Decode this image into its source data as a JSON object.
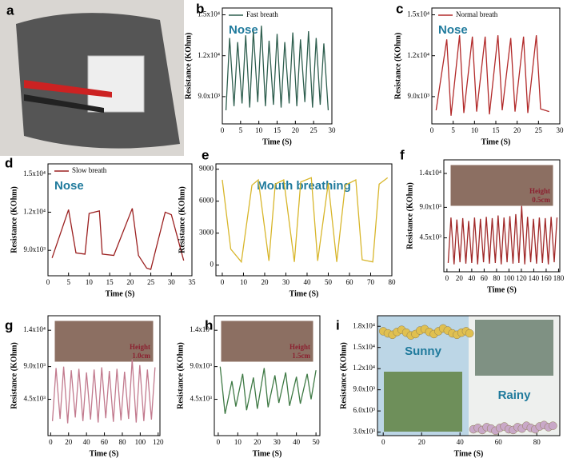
{
  "photo_panel": {
    "label": "a"
  },
  "chart_data": [
    {
      "type": "line",
      "label": "b",
      "xlabel": "Time (S)",
      "ylabel": "Resistance (KOhm)",
      "annotations": [
        "Nose"
      ],
      "xlim": [
        0,
        30
      ],
      "xticks": [
        0,
        5,
        10,
        15,
        20,
        25,
        30
      ],
      "ylim": [
        7000,
        15500
      ],
      "yticks": [
        {
          "value": 9000,
          "label": "9.0x10³"
        },
        {
          "value": 12000,
          "label": "1.2x10⁴"
        },
        {
          "value": 15000,
          "label": "1.5x10⁴"
        }
      ],
      "x": [
        1,
        2,
        3.2,
        4.2,
        5.4,
        6.4,
        7.5,
        8.5,
        9.7,
        10.7,
        11.8,
        12.8,
        14,
        15,
        16.1,
        17.1,
        18.3,
        19.3,
        20.4,
        21.4,
        22.6,
        23.6,
        24.7,
        25.7,
        26.8,
        27.8,
        29
      ],
      "series": [
        {
          "name": "Fast breath",
          "color": "#2f5f4f",
          "values": [
            8000,
            13300,
            8300,
            13000,
            8500,
            13500,
            8200,
            13800,
            8600,
            14200,
            8300,
            13100,
            8400,
            13600,
            8200,
            13000,
            8500,
            13700,
            8300,
            13200,
            8600,
            13800,
            8200,
            13300,
            8400,
            12900,
            8000
          ]
        }
      ]
    },
    {
      "type": "line",
      "label": "c",
      "xlabel": "Time (S)",
      "ylabel": "Resistance (KOhm)",
      "annotations": [
        "Nose"
      ],
      "xlim": [
        0,
        30
      ],
      "xticks": [
        0,
        5,
        10,
        15,
        20,
        25,
        30
      ],
      "ylim": [
        7000,
        15500
      ],
      "yticks": [
        {
          "value": 9000,
          "label": "9.0x10³"
        },
        {
          "value": 12000,
          "label": "1.2x10⁴"
        },
        {
          "value": 15000,
          "label": "1.5x10⁴"
        }
      ],
      "x": [
        1,
        3.5,
        4.5,
        6.5,
        7.5,
        9.5,
        10.5,
        12.5,
        13.5,
        15.5,
        16.5,
        18.5,
        19.5,
        21.5,
        22.5,
        24.5,
        25.5,
        27.5
      ],
      "series": [
        {
          "name": "Normal breath",
          "color": "#b22a2a",
          "values": [
            8000,
            13200,
            7600,
            13500,
            7800,
            13400,
            7900,
            13400,
            7700,
            13500,
            8000,
            13300,
            7900,
            13400,
            7800,
            13500,
            8100,
            7900
          ]
        }
      ]
    },
    {
      "type": "line",
      "label": "d",
      "xlabel": "Time (S)",
      "ylabel": "Resistance (KOhm)",
      "annotations": [
        "Nose"
      ],
      "xlim": [
        0,
        35
      ],
      "xticks": [
        0,
        5,
        10,
        15,
        20,
        25,
        30,
        35
      ],
      "ylim": [
        7000,
        15800
      ],
      "yticks": [
        {
          "value": 9000,
          "label": "9.0x10³"
        },
        {
          "value": 12000,
          "label": "1.2x10⁴"
        },
        {
          "value": 15000,
          "label": "1.5x10⁴"
        }
      ],
      "x": [
        1,
        5,
        6.8,
        9,
        10,
        12.5,
        13.2,
        16,
        20.5,
        22,
        24,
        25,
        28.5,
        30,
        33
      ],
      "series": [
        {
          "name": "Slow breath",
          "color": "#9b2020",
          "values": [
            8400,
            12200,
            8800,
            8700,
            11900,
            12100,
            8700,
            8600,
            12300,
            8600,
            7600,
            7500,
            12000,
            11800,
            8200
          ]
        }
      ]
    },
    {
      "type": "line",
      "label": "e",
      "xlabel": "Time (S)",
      "ylabel": "Resistance (KOhm)",
      "annotations": [
        "Mouth breathing"
      ],
      "xlim": [
        -3,
        80
      ],
      "xticks": [
        0,
        10,
        20,
        30,
        40,
        50,
        60,
        70,
        80
      ],
      "ylim": [
        -1000,
        9500
      ],
      "yticks": [
        0,
        3000,
        6000,
        9000
      ],
      "x": [
        0,
        4,
        9,
        14,
        17,
        22,
        25,
        29,
        34,
        37,
        42,
        45,
        50,
        54,
        58,
        63,
        66,
        71,
        74,
        78
      ],
      "series": [
        {
          "name": null,
          "color": "#d8b62b",
          "values": [
            8000,
            1500,
            300,
            7500,
            8000,
            400,
            7600,
            8000,
            300,
            7800,
            8200,
            400,
            7700,
            300,
            7500,
            8000,
            500,
            300,
            7600,
            8200
          ]
        }
      ]
    },
    {
      "type": "line",
      "label": "f",
      "xlabel": "Time (S)",
      "ylabel": "Resistance (KOhm)",
      "annotations": [
        "Height",
        "0.5cm"
      ],
      "xlim": [
        -5,
        182
      ],
      "xticks": [
        0,
        20,
        40,
        60,
        80,
        100,
        120,
        140,
        160,
        180
      ],
      "ylim": [
        -500,
        16000
      ],
      "yticks": [
        {
          "value": 4500,
          "label": "4.5x10³"
        },
        {
          "value": 9000,
          "label": "9.0x10³"
        },
        {
          "value": 14000,
          "label": "1.4x10⁴"
        }
      ],
      "x": [
        2,
        6.5,
        11.5,
        16,
        21,
        25.5,
        30.5,
        35,
        40,
        44.5,
        49.5,
        54,
        59,
        63.5,
        68.5,
        73,
        78,
        82.5,
        87.5,
        92,
        97,
        101.5,
        106.5,
        111,
        116,
        120.5,
        125.5,
        130,
        135,
        139.5,
        144.5,
        149,
        154,
        158.5,
        163.5,
        168,
        173,
        177.5
      ],
      "series": [
        {
          "name": null,
          "color": "#a02828",
          "values": [
            800,
            7500,
            600,
            7200,
            900,
            7400,
            700,
            7000,
            800,
            7500,
            600,
            7300,
            900,
            7600,
            700,
            7400,
            800,
            7800,
            600,
            7500,
            900,
            7700,
            700,
            8000,
            800,
            9200,
            600,
            7600,
            900,
            7300,
            700,
            7500,
            800,
            7400,
            600,
            7600,
            900,
            7500
          ]
        }
      ]
    },
    {
      "type": "line",
      "label": "g",
      "xlabel": "Time (S)",
      "ylabel": "Resistance (KOhm)",
      "annotations": [
        "Height",
        "1.0cm"
      ],
      "xlim": [
        -3,
        122
      ],
      "xticks": [
        0,
        20,
        40,
        60,
        80,
        100,
        120
      ],
      "ylim": [
        -500,
        16000
      ],
      "yticks": [
        {
          "value": 4500,
          "label": "4.5x10³"
        },
        {
          "value": 9000,
          "label": "9.0x10³"
        },
        {
          "value": 14000,
          "label": "1.4x10⁴"
        }
      ],
      "x": [
        2,
        6,
        10.5,
        14.5,
        19,
        23,
        27.5,
        31.5,
        36,
        40,
        44.5,
        48.5,
        53,
        57,
        61.5,
        65.5,
        70,
        74,
        78.5,
        82.5,
        87,
        91,
        95.5,
        99.5,
        104,
        108,
        112.5,
        116.5
      ],
      "series": [
        {
          "name": null,
          "color": "#c27a8e",
          "values": [
            1500,
            8800,
            1800,
            9000,
            1200,
            8500,
            2000,
            8700,
            1500,
            8200,
            1700,
            8600,
            1300,
            8900,
            1900,
            8400,
            1400,
            8700,
            1600,
            8300,
            1800,
            10000,
            1300,
            9200,
            1500,
            8600,
            1700,
            8900
          ]
        }
      ]
    },
    {
      "type": "line",
      "label": "h",
      "xlabel": "Time (S)",
      "ylabel": "Resistance (KOhm)",
      "annotations": [
        "Height",
        "1.5cm"
      ],
      "xlim": [
        -2,
        52
      ],
      "xticks": [
        0,
        10,
        20,
        30,
        40,
        50
      ],
      "ylim": [
        -500,
        16000
      ],
      "yticks": [
        {
          "value": 4500,
          "label": "4.5x10³"
        },
        {
          "value": 9000,
          "label": "9.0x10³"
        },
        {
          "value": 14000,
          "label": "1.4x10⁴"
        }
      ],
      "x": [
        1,
        3.5,
        7,
        9,
        12.5,
        14.5,
        18,
        20,
        23.5,
        25.5,
        29,
        31,
        34.5,
        36.5,
        40,
        42,
        45.5,
        47.5,
        50
      ],
      "series": [
        {
          "name": null,
          "color": "#3f7a45",
          "values": [
            9000,
            2500,
            7000,
            3500,
            8000,
            3000,
            7500,
            3200,
            8800,
            3400,
            7800,
            4000,
            8200,
            3600,
            7600,
            3900,
            8000,
            4500,
            8500
          ]
        }
      ]
    },
    {
      "type": "scatter",
      "label": "i",
      "xlabel": "Time (S)",
      "ylabel": "Resistance (KOhm)",
      "annotations": [],
      "xlim": [
        -3,
        92
      ],
      "xticks": [
        0,
        20,
        40,
        60,
        80
      ],
      "ylim": [
        2500,
        19500
      ],
      "yticks": [
        {
          "value": 3000,
          "label": "3.0x10³"
        },
        {
          "value": 6000,
          "label": "6.0x10³"
        },
        {
          "value": 9000,
          "label": "9.0x10³"
        },
        {
          "value": 12000,
          "label": "1.2x10⁴"
        },
        {
          "value": 15000,
          "label": "1.5x10⁴"
        },
        {
          "value": 18000,
          "label": "1.8x10⁴"
        }
      ],
      "series": [
        {
          "name": "Sunny",
          "color": "#e0c050",
          "x": [
            0,
            2.4,
            4.8,
            7.2,
            9.6,
            12,
            14.4,
            16.8,
            19.2,
            21.6,
            24,
            26.4,
            28.8,
            31.2,
            33.6,
            36,
            38.4,
            40.8,
            43.2,
            45
          ],
          "values": [
            17300,
            17000,
            16800,
            17200,
            17500,
            17100,
            16700,
            16900,
            17400,
            17600,
            17200,
            16900,
            17300,
            17700,
            17400,
            17000,
            16800,
            17100,
            17300,
            17000
          ]
        },
        {
          "name": "Rainy",
          "color": "#c9a8c8",
          "x": [
            47,
            49.3,
            51.6,
            53.9,
            56.2,
            58.5,
            60.8,
            63.1,
            65.4,
            67.7,
            70,
            72.3,
            74.6,
            76.9,
            79.2,
            81.5,
            83.8,
            86.1,
            88.4
          ],
          "values": [
            3400,
            3600,
            3300,
            3700,
            3500,
            3200,
            3600,
            3800,
            3400,
            3300,
            3700,
            3500,
            3900,
            3600,
            3400,
            3800,
            4000,
            3700,
            3900
          ]
        }
      ]
    }
  ]
}
